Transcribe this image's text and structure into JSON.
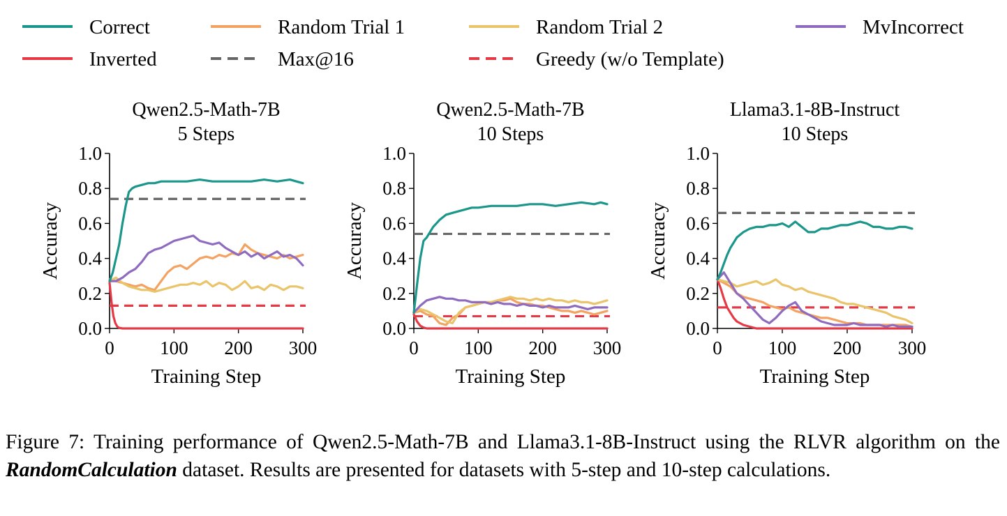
{
  "legend": [
    {
      "id": "correct",
      "label": "Correct",
      "color": "#1b968a",
      "dash": false
    },
    {
      "id": "random1",
      "label": "Random Trial 1",
      "color": "#f4a261",
      "dash": false
    },
    {
      "id": "random2",
      "label": "Random Trial 2",
      "color": "#e9c46a",
      "dash": false
    },
    {
      "id": "mvincorrect",
      "label": "MvIncorrect",
      "color": "#8e6bbf",
      "dash": false
    },
    {
      "id": "inverted",
      "label": "Inverted",
      "color": "#e63946",
      "dash": false
    },
    {
      "id": "max16",
      "label": "Max@16",
      "color": "#666666",
      "dash": true
    },
    {
      "id": "greedy",
      "label": "Greedy (w/o Template)",
      "color": "#e63946",
      "dash": true
    }
  ],
  "chart_data": [
    {
      "type": "line",
      "title_line1": "Qwen2.5-Math-7B",
      "title_line2": "5 Steps",
      "xlabel": "Training Step",
      "ylabel": "Accuracy",
      "xlim": [
        0,
        300
      ],
      "ylim": [
        0,
        1.0
      ],
      "xticks": [
        "0",
        "100",
        "200",
        "300"
      ],
      "yticks": [
        "0.0",
        "0.2",
        "0.4",
        "0.6",
        "0.8",
        "1.0"
      ],
      "hlines": [
        {
          "id": "max16",
          "y": 0.74
        },
        {
          "id": "greedy",
          "y": 0.13
        }
      ],
      "series": [
        {
          "id": "inverted",
          "x": [
            0,
            3,
            6,
            9,
            12,
            15,
            20,
            30,
            300
          ],
          "y": [
            0.26,
            0.15,
            0.07,
            0.03,
            0.01,
            0.003,
            0.0,
            0.0,
            0.0
          ]
        },
        {
          "id": "random2",
          "x": [
            0,
            10,
            20,
            30,
            40,
            50,
            60,
            70,
            80,
            90,
            100,
            110,
            120,
            130,
            140,
            150,
            160,
            170,
            180,
            190,
            200,
            210,
            220,
            230,
            240,
            250,
            260,
            270,
            280,
            290,
            300
          ],
          "y": [
            0.27,
            0.29,
            0.26,
            0.24,
            0.23,
            0.22,
            0.22,
            0.21,
            0.22,
            0.23,
            0.24,
            0.25,
            0.25,
            0.26,
            0.25,
            0.27,
            0.24,
            0.26,
            0.25,
            0.22,
            0.24,
            0.27,
            0.23,
            0.24,
            0.22,
            0.25,
            0.24,
            0.22,
            0.24,
            0.24,
            0.23
          ]
        },
        {
          "id": "random1",
          "x": [
            0,
            10,
            20,
            30,
            40,
            50,
            60,
            70,
            80,
            90,
            100,
            110,
            120,
            130,
            140,
            150,
            160,
            170,
            180,
            190,
            200,
            210,
            220,
            230,
            240,
            250,
            260,
            270,
            280,
            290,
            300
          ],
          "y": [
            0.28,
            0.27,
            0.26,
            0.25,
            0.24,
            0.25,
            0.23,
            0.22,
            0.27,
            0.32,
            0.35,
            0.36,
            0.34,
            0.37,
            0.4,
            0.41,
            0.4,
            0.42,
            0.41,
            0.43,
            0.42,
            0.48,
            0.45,
            0.43,
            0.42,
            0.41,
            0.4,
            0.42,
            0.4,
            0.41,
            0.42
          ]
        },
        {
          "id": "mvincorrect",
          "x": [
            0,
            10,
            20,
            30,
            40,
            50,
            60,
            70,
            80,
            90,
            100,
            110,
            120,
            130,
            140,
            150,
            160,
            170,
            180,
            190,
            200,
            210,
            220,
            230,
            240,
            250,
            260,
            270,
            280,
            290,
            300
          ],
          "y": [
            0.27,
            0.27,
            0.29,
            0.32,
            0.34,
            0.38,
            0.43,
            0.45,
            0.46,
            0.48,
            0.5,
            0.51,
            0.52,
            0.53,
            0.5,
            0.49,
            0.48,
            0.49,
            0.46,
            0.44,
            0.42,
            0.44,
            0.41,
            0.43,
            0.4,
            0.42,
            0.44,
            0.41,
            0.42,
            0.4,
            0.36
          ]
        },
        {
          "id": "correct",
          "x": [
            0,
            5,
            10,
            15,
            20,
            25,
            30,
            35,
            40,
            50,
            60,
            70,
            80,
            100,
            120,
            140,
            160,
            180,
            200,
            220,
            240,
            260,
            280,
            290,
            300
          ],
          "y": [
            0.27,
            0.32,
            0.4,
            0.48,
            0.6,
            0.7,
            0.78,
            0.8,
            0.81,
            0.82,
            0.83,
            0.83,
            0.84,
            0.84,
            0.84,
            0.85,
            0.84,
            0.84,
            0.84,
            0.84,
            0.85,
            0.84,
            0.85,
            0.84,
            0.83
          ]
        }
      ]
    },
    {
      "type": "line",
      "title_line1": "Qwen2.5-Math-7B",
      "title_line2": "10 Steps",
      "xlabel": "Training Step",
      "ylabel": "Accuracy",
      "xlim": [
        0,
        300
      ],
      "ylim": [
        0,
        1.0
      ],
      "xticks": [
        "0",
        "100",
        "200",
        "300"
      ],
      "yticks": [
        "0.0",
        "0.2",
        "0.4",
        "0.6",
        "0.8",
        "1.0"
      ],
      "hlines": [
        {
          "id": "max16",
          "y": 0.54
        },
        {
          "id": "greedy",
          "y": 0.07
        }
      ],
      "series": [
        {
          "id": "inverted",
          "x": [
            0,
            5,
            10,
            15,
            20,
            30,
            300
          ],
          "y": [
            0.08,
            0.04,
            0.015,
            0.005,
            0.0,
            0.0,
            0.0
          ]
        },
        {
          "id": "random1",
          "x": [
            0,
            10,
            20,
            30,
            40,
            50,
            60,
            70,
            80,
            90,
            100,
            110,
            120,
            130,
            140,
            150,
            160,
            170,
            180,
            190,
            200,
            210,
            220,
            230,
            240,
            250,
            260,
            270,
            280,
            290,
            300
          ],
          "y": [
            0.09,
            0.1,
            0.08,
            0.07,
            0.03,
            0.02,
            0.06,
            0.08,
            0.12,
            0.13,
            0.14,
            0.15,
            0.15,
            0.16,
            0.16,
            0.17,
            0.15,
            0.14,
            0.14,
            0.13,
            0.13,
            0.12,
            0.11,
            0.1,
            0.1,
            0.09,
            0.1,
            0.09,
            0.08,
            0.09,
            0.1
          ]
        },
        {
          "id": "random2",
          "x": [
            0,
            10,
            20,
            30,
            40,
            50,
            60,
            70,
            80,
            90,
            100,
            110,
            120,
            130,
            140,
            150,
            160,
            170,
            180,
            190,
            200,
            210,
            220,
            230,
            240,
            250,
            260,
            270,
            280,
            290,
            300
          ],
          "y": [
            0.09,
            0.11,
            0.1,
            0.08,
            0.06,
            0.04,
            0.03,
            0.09,
            0.12,
            0.13,
            0.14,
            0.15,
            0.15,
            0.16,
            0.17,
            0.18,
            0.17,
            0.17,
            0.16,
            0.17,
            0.16,
            0.17,
            0.16,
            0.16,
            0.15,
            0.16,
            0.15,
            0.15,
            0.14,
            0.15,
            0.16
          ]
        },
        {
          "id": "mvincorrect",
          "x": [
            0,
            10,
            20,
            30,
            40,
            50,
            60,
            70,
            80,
            90,
            100,
            110,
            120,
            130,
            140,
            150,
            160,
            170,
            180,
            190,
            200,
            210,
            220,
            230,
            240,
            250,
            260,
            270,
            280,
            290,
            300
          ],
          "y": [
            0.09,
            0.13,
            0.16,
            0.17,
            0.18,
            0.17,
            0.17,
            0.16,
            0.16,
            0.15,
            0.15,
            0.15,
            0.14,
            0.15,
            0.14,
            0.14,
            0.13,
            0.14,
            0.13,
            0.13,
            0.12,
            0.13,
            0.12,
            0.12,
            0.12,
            0.13,
            0.12,
            0.11,
            0.12,
            0.12,
            0.12
          ]
        },
        {
          "id": "correct",
          "x": [
            0,
            5,
            10,
            15,
            20,
            25,
            30,
            40,
            50,
            60,
            70,
            80,
            90,
            100,
            120,
            140,
            160,
            180,
            200,
            220,
            240,
            260,
            280,
            290,
            300
          ],
          "y": [
            0.09,
            0.25,
            0.4,
            0.5,
            0.52,
            0.55,
            0.58,
            0.62,
            0.65,
            0.66,
            0.67,
            0.68,
            0.69,
            0.69,
            0.7,
            0.7,
            0.7,
            0.71,
            0.71,
            0.7,
            0.71,
            0.72,
            0.71,
            0.72,
            0.71
          ]
        }
      ]
    },
    {
      "type": "line",
      "title_line1": "Llama3.1-8B-Instruct",
      "title_line2": "10 Steps",
      "xlabel": "Training Step",
      "ylabel": "Accuracy",
      "xlim": [
        0,
        300
      ],
      "ylim": [
        0,
        1.0
      ],
      "xticks": [
        "0",
        "100",
        "200",
        "300"
      ],
      "yticks": [
        "0.0",
        "0.2",
        "0.4",
        "0.6",
        "0.8",
        "1.0"
      ],
      "hlines": [
        {
          "id": "max16",
          "y": 0.66
        },
        {
          "id": "greedy",
          "y": 0.12
        }
      ],
      "series": [
        {
          "id": "inverted",
          "x": [
            0,
            5,
            10,
            15,
            20,
            25,
            30,
            40,
            50,
            60,
            80,
            300
          ],
          "y": [
            0.28,
            0.23,
            0.17,
            0.12,
            0.09,
            0.06,
            0.04,
            0.02,
            0.01,
            0.0,
            0.0,
            0.0
          ]
        },
        {
          "id": "random2",
          "x": [
            0,
            10,
            20,
            30,
            40,
            50,
            60,
            70,
            80,
            90,
            100,
            110,
            120,
            130,
            140,
            150,
            160,
            170,
            180,
            190,
            200,
            210,
            220,
            230,
            240,
            250,
            260,
            270,
            280,
            290,
            300
          ],
          "y": [
            0.28,
            0.27,
            0.26,
            0.24,
            0.25,
            0.26,
            0.27,
            0.25,
            0.26,
            0.28,
            0.25,
            0.24,
            0.22,
            0.23,
            0.21,
            0.2,
            0.19,
            0.18,
            0.17,
            0.15,
            0.14,
            0.14,
            0.13,
            0.12,
            0.11,
            0.1,
            0.09,
            0.07,
            0.06,
            0.05,
            0.03
          ]
        },
        {
          "id": "random1",
          "x": [
            0,
            10,
            20,
            30,
            40,
            50,
            60,
            70,
            80,
            90,
            100,
            110,
            120,
            130,
            140,
            150,
            160,
            170,
            180,
            190,
            200,
            210,
            220,
            230,
            240,
            250,
            260,
            270,
            280,
            290,
            300
          ],
          "y": [
            0.28,
            0.26,
            0.24,
            0.2,
            0.18,
            0.17,
            0.16,
            0.15,
            0.13,
            0.12,
            0.11,
            0.12,
            0.1,
            0.09,
            0.08,
            0.07,
            0.06,
            0.06,
            0.05,
            0.04,
            0.03,
            0.03,
            0.03,
            0.02,
            0.02,
            0.02,
            0.02,
            0.02,
            0.02,
            0.02,
            0.01
          ]
        },
        {
          "id": "mvincorrect",
          "x": [
            0,
            5,
            10,
            20,
            30,
            40,
            50,
            60,
            70,
            80,
            90,
            100,
            110,
            120,
            130,
            140,
            150,
            160,
            170,
            180,
            190,
            200,
            210,
            220,
            230,
            240,
            250,
            260,
            270,
            280,
            290,
            300
          ],
          "y": [
            0.28,
            0.3,
            0.32,
            0.26,
            0.2,
            0.17,
            0.13,
            0.09,
            0.05,
            0.03,
            0.06,
            0.1,
            0.13,
            0.15,
            0.1,
            0.08,
            0.06,
            0.04,
            0.03,
            0.02,
            0.02,
            0.02,
            0.03,
            0.02,
            0.02,
            0.02,
            0.02,
            0.01,
            0.02,
            0.01,
            0.01,
            0.01
          ]
        },
        {
          "id": "correct",
          "x": [
            0,
            5,
            10,
            15,
            20,
            25,
            30,
            40,
            50,
            60,
            70,
            80,
            90,
            100,
            110,
            120,
            130,
            140,
            150,
            160,
            170,
            180,
            190,
            200,
            210,
            220,
            230,
            240,
            250,
            260,
            270,
            280,
            290,
            300
          ],
          "y": [
            0.28,
            0.32,
            0.37,
            0.42,
            0.46,
            0.49,
            0.52,
            0.55,
            0.57,
            0.58,
            0.58,
            0.59,
            0.59,
            0.6,
            0.58,
            0.61,
            0.58,
            0.55,
            0.55,
            0.57,
            0.57,
            0.58,
            0.59,
            0.59,
            0.6,
            0.61,
            0.6,
            0.58,
            0.58,
            0.57,
            0.57,
            0.58,
            0.58,
            0.57
          ]
        }
      ]
    }
  ],
  "caption": {
    "prefix": "Figure 7: Training performance of Qwen2.5-Math-7B and Llama3.1-8B-Instruct using the RLVR algorithm on the ",
    "emphasis": "RandomCalculation",
    "suffix": " dataset.  Results are presented for datasets with 5-step and 10-step calculations."
  }
}
